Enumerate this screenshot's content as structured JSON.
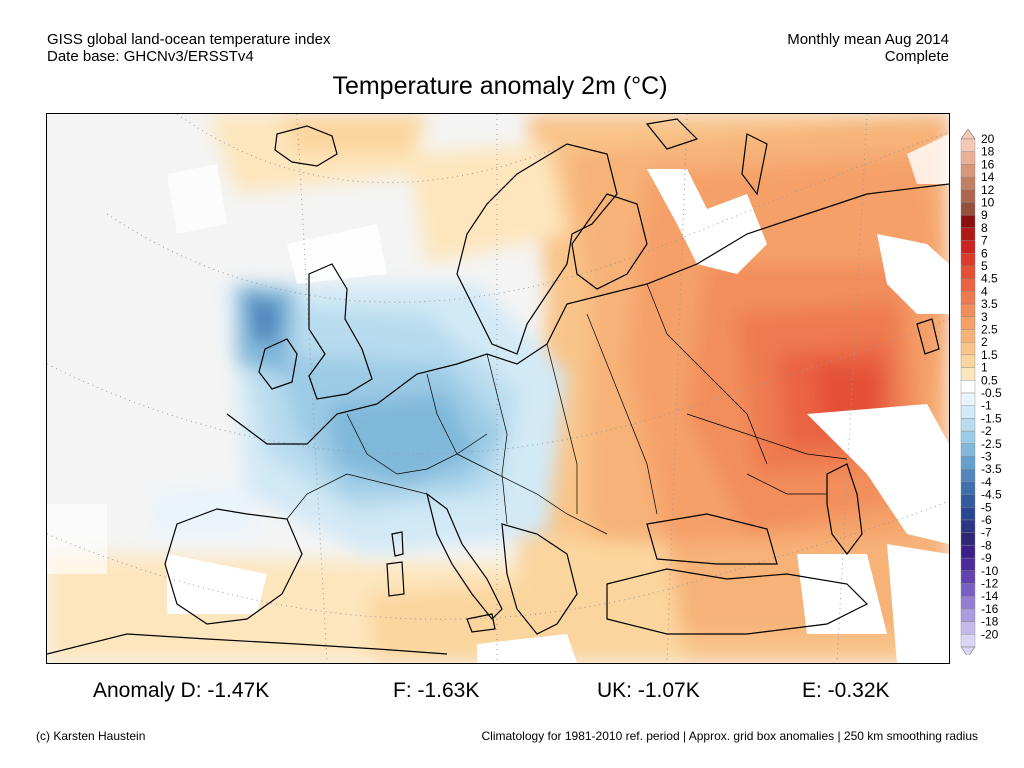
{
  "header": {
    "left_line1": "GISS global land-ocean temperature index",
    "left_line2": "Date base: GHCNv3/ERSSTv4",
    "right_line1": "Monthly mean Aug 2014",
    "right_line2": "Complete"
  },
  "title": "Temperature anomaly 2m (°C)",
  "stats": [
    {
      "label": "Anomaly D: -1.47K"
    },
    {
      "label": "F: -1.63K"
    },
    {
      "label": "UK: -1.07K"
    },
    {
      "label": "E: -0.32K"
    }
  ],
  "footer": {
    "left": "(c) Karsten Haustein",
    "right": "Climatology for 1981-2010 ref. period | Approx. grid box anomalies | 250 km smoothing radius"
  },
  "colorbar": {
    "levels": [
      {
        "label": "20",
        "color": "#f3c8b4"
      },
      {
        "label": "18",
        "color": "#e9b097"
      },
      {
        "label": "16",
        "color": "#d9987c"
      },
      {
        "label": "14",
        "color": "#c47e64"
      },
      {
        "label": "12",
        "color": "#ad6650"
      },
      {
        "label": "10",
        "color": "#95503d"
      },
      {
        "label": "9",
        "color": "#8c1010"
      },
      {
        "label": "8",
        "color": "#b01818"
      },
      {
        "label": "7",
        "color": "#cc2222"
      },
      {
        "label": "6",
        "color": "#dc3a2a"
      },
      {
        "label": "5",
        "color": "#e45036"
      },
      {
        "label": "4.5",
        "color": "#ea6442"
      },
      {
        "label": "4",
        "color": "#ee7a4f"
      },
      {
        "label": "3.5",
        "color": "#f28e5c"
      },
      {
        "label": "3",
        "color": "#f5a069"
      },
      {
        "label": "2.5",
        "color": "#f7b278"
      },
      {
        "label": "2",
        "color": "#f9c489"
      },
      {
        "label": "1.5",
        "color": "#fbd59e"
      },
      {
        "label": "1",
        "color": "#fde6bd"
      },
      {
        "label": "0.5",
        "color": "#ffffff"
      },
      {
        "label": "-0.5",
        "color": "#e9f4fb"
      },
      {
        "label": "-1",
        "color": "#d2e9f6"
      },
      {
        "label": "-1.5",
        "color": "#b8dbee"
      },
      {
        "label": "-2",
        "color": "#9ccbe5"
      },
      {
        "label": "-2.5",
        "color": "#80b8da"
      },
      {
        "label": "-3",
        "color": "#669fcc"
      },
      {
        "label": "-3.5",
        "color": "#5186bd"
      },
      {
        "label": "-4",
        "color": "#406fae"
      },
      {
        "label": "-4.5",
        "color": "#33599f"
      },
      {
        "label": "-5",
        "color": "#2b4691"
      },
      {
        "label": "-6",
        "color": "#2a3683"
      },
      {
        "label": "-7",
        "color": "#2e2877"
      },
      {
        "label": "-8",
        "color": "#3b2088"
      },
      {
        "label": "-9",
        "color": "#4e2b9c"
      },
      {
        "label": "-10",
        "color": "#6243b0"
      },
      {
        "label": "-12",
        "color": "#7a60c2"
      },
      {
        "label": "-14",
        "color": "#937ed1"
      },
      {
        "label": "-16",
        "color": "#ab9cde"
      },
      {
        "label": "-18",
        "color": "#c3baea"
      },
      {
        "label": "-20",
        "color": "#dad5f4"
      }
    ]
  }
}
